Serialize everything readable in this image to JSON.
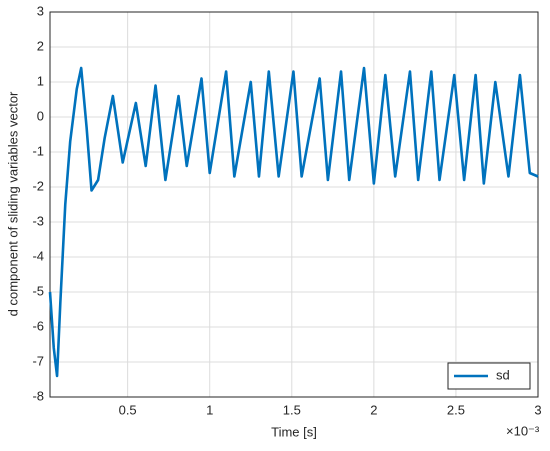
{
  "chart_data": {
    "type": "line",
    "x_label": "Time [s]",
    "x_exponent_label": "×10⁻³",
    "y_label": "d component of sliding variables vector",
    "x": [
      0.027,
      0.05,
      0.07,
      0.09,
      0.12,
      0.15,
      0.19,
      0.217,
      0.25,
      0.28,
      0.32,
      0.36,
      0.41,
      0.47,
      0.55,
      0.61,
      0.67,
      0.73,
      0.81,
      0.86,
      0.95,
      1.0,
      1.1,
      1.15,
      1.25,
      1.3,
      1.36,
      1.42,
      1.51,
      1.56,
      1.67,
      1.72,
      1.8,
      1.85,
      1.94,
      2.0,
      2.07,
      2.13,
      2.22,
      2.27,
      2.35,
      2.4,
      2.49,
      2.55,
      2.62,
      2.67,
      2.74,
      2.82,
      2.89,
      2.95,
      3.0
    ],
    "series": [
      {
        "name": "sd",
        "color": "#0072bd",
        "values": [
          -5,
          -6.6,
          -7.4,
          -5.3,
          -2.5,
          -0.7,
          0.8,
          1.4,
          -0.3,
          -2.1,
          -1.8,
          -0.6,
          0.6,
          -1.3,
          0.4,
          -1.4,
          0.9,
          -1.8,
          0.6,
          -1.4,
          1.1,
          -1.6,
          1.3,
          -1.7,
          1.0,
          -1.7,
          1.3,
          -1.7,
          1.3,
          -1.7,
          1.1,
          -1.8,
          1.3,
          -1.8,
          1.4,
          -1.9,
          1.2,
          -1.7,
          1.3,
          -1.8,
          1.3,
          -1.8,
          1.2,
          -1.8,
          1.2,
          -1.9,
          1.0,
          -1.7,
          1.2,
          -1.6,
          -1.7
        ]
      }
    ],
    "xlim": [
      0.027,
      3
    ],
    "xticks": [
      0.5,
      1,
      1.5,
      2,
      2.5,
      3
    ],
    "ylim": [
      -8,
      3
    ],
    "yticks": [
      -8,
      -7,
      -6,
      -5,
      -4,
      -3,
      -2,
      -1,
      0,
      1,
      2,
      3
    ],
    "grid": true,
    "legend": "bottom-right"
  }
}
